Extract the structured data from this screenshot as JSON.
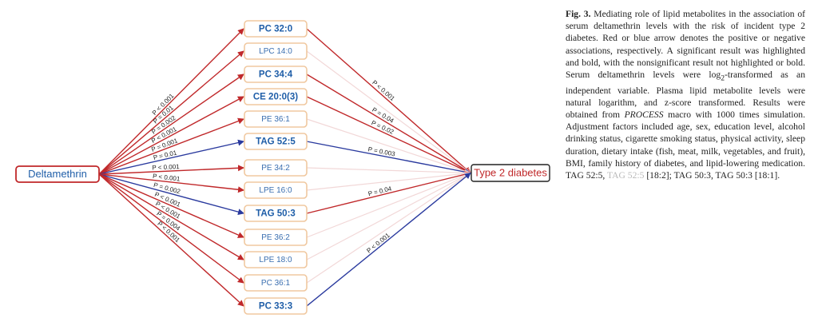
{
  "colors": {
    "positive": "#c0282a",
    "negative": "#2a3a9e",
    "node_border": "#f0c8a0",
    "metabolite_text": "#1f5ea8"
  },
  "diagram": {
    "exposure": "Deltamethrin",
    "outcome": "Type 2 diabetes",
    "metabolites": [
      {
        "label": "PC 32:0",
        "significant": true,
        "a_p": "P < 0.001",
        "a_dir": "positive",
        "b_p": "P < 0.001",
        "b_dir": "positive",
        "b_visible": true
      },
      {
        "label": "LPC 14:0",
        "significant": false,
        "a_p": "P = 0.01",
        "a_dir": "positive",
        "b_p": "",
        "b_dir": "positive",
        "b_visible": false
      },
      {
        "label": "PC 34:4",
        "significant": true,
        "a_p": "P = 0.002",
        "a_dir": "positive",
        "b_p": "P = 0.04",
        "b_dir": "positive",
        "b_visible": true
      },
      {
        "label": "CE 20:0(3)",
        "significant": true,
        "a_p": "P < 0.001",
        "a_dir": "positive",
        "b_p": "P = 0.02",
        "b_dir": "positive",
        "b_visible": true
      },
      {
        "label": "PE 36:1",
        "significant": false,
        "a_p": "P = 0.001",
        "a_dir": "positive",
        "b_p": "",
        "b_dir": "positive",
        "b_visible": false
      },
      {
        "label": "TAG 52:5",
        "significant": true,
        "a_p": "P = 0.01",
        "a_dir": "negative",
        "b_p": "P = 0.003",
        "b_dir": "negative",
        "b_visible": true
      },
      {
        "label": "PE 34:2",
        "significant": false,
        "a_p": "P < 0.001",
        "a_dir": "positive",
        "b_p": "",
        "b_dir": "positive",
        "b_visible": false
      },
      {
        "label": "LPE 16:0",
        "significant": false,
        "a_p": "P < 0.001",
        "a_dir": "positive",
        "b_p": "",
        "b_dir": "positive",
        "b_visible": false
      },
      {
        "label": "TAG 50:3",
        "significant": true,
        "a_p": "P = 0.002",
        "a_dir": "negative",
        "b_p": "P = 0.04",
        "b_dir": "positive",
        "b_visible": true
      },
      {
        "label": "PE 36:2",
        "significant": false,
        "a_p": "P < 0.001",
        "a_dir": "positive",
        "b_p": "",
        "b_dir": "positive",
        "b_visible": false
      },
      {
        "label": "LPE 18:0",
        "significant": false,
        "a_p": "P < 0.001",
        "a_dir": "positive",
        "b_p": "",
        "b_dir": "positive",
        "b_visible": false
      },
      {
        "label": "PC 36:1",
        "significant": false,
        "a_p": "P = 0.004",
        "a_dir": "positive",
        "b_p": "",
        "b_dir": "positive",
        "b_visible": false
      },
      {
        "label": "PC 33:3",
        "significant": true,
        "a_p": "P < 0.001",
        "a_dir": "positive",
        "b_p": "P < 0.001",
        "b_dir": "negative",
        "b_visible": true
      }
    ]
  },
  "caption": {
    "fig_label": "Fig. 3.",
    "text_1": " Mediating role of lipid metabolites in the association of serum deltamethrin levels with the risk of incident type 2 diabetes. Red or blue arrow denotes the positive or negative associations, respectively. A significant result was highlighted and bold, with the nonsignificant result not highlighted or bold. Serum deltamethrin levels were log",
    "subscript": "2",
    "text_2": "-transformed as an independent variable. Plasma lipid metabolite levels were natural logarithm, and z-score transformed. Results were obtained from ",
    "macro_name": "PROCESS",
    "text_3": " macro with 1000 times simulation. Adjustment factors included age, sex, education level, alcohol drinking status, cigarette smoking status, physical activity, sleep duration, dietary intake (fish, meat, milk, vegetables, and fruit), BMI, family history of diabetes, and lipid-lowering medication. TAG 52:5, ",
    "faint_text": "TAG 52:5",
    "text_4": " [18:2]; TAG 50:3, TAG 50:3 [18:1]."
  }
}
